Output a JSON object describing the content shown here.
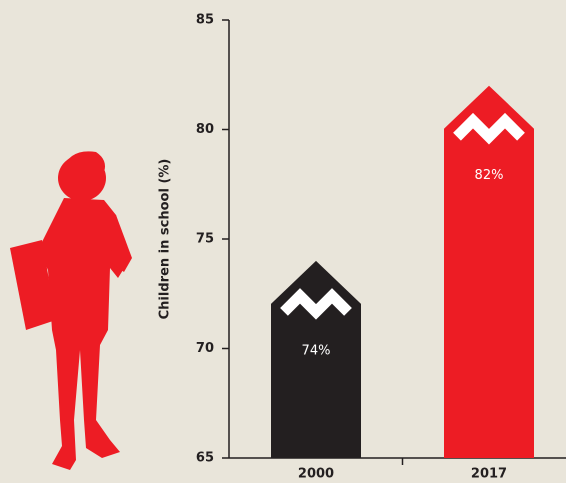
{
  "chart_data": {
    "type": "bar",
    "y_label": "Children in school (%)",
    "categories": [
      "2000",
      "2017"
    ],
    "values": [
      74,
      82
    ],
    "value_labels": [
      "74%",
      "82%"
    ],
    "colors": [
      "#231f20",
      "#ed1c24"
    ],
    "ylim": [
      65,
      85
    ],
    "yticks": [
      65,
      70,
      75,
      80,
      85
    ]
  }
}
